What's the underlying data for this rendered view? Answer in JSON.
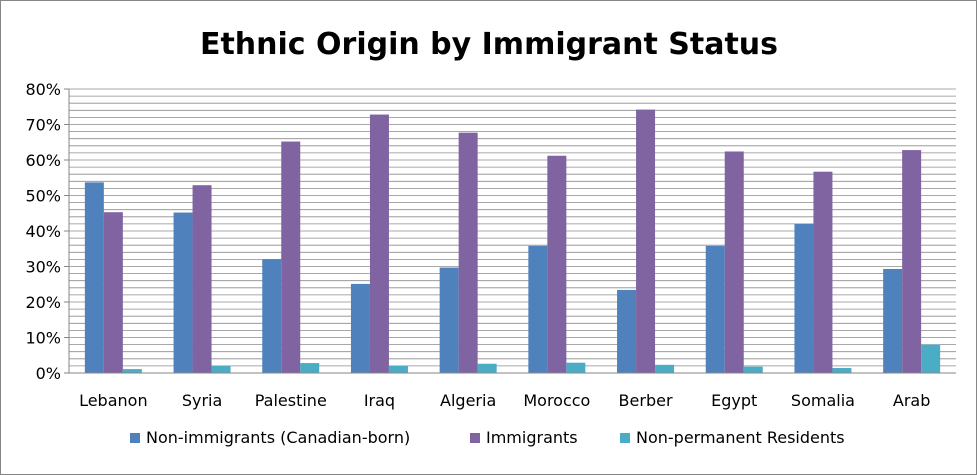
{
  "chart_data": {
    "type": "bar",
    "title": "Ethnic Origin by Immigrant Status",
    "xlabel": "",
    "ylabel": "",
    "categories": [
      "Lebanon",
      "Syria",
      "Palestine",
      "Iraq",
      "Algeria",
      "Morocco",
      "Berber",
      "Egypt",
      "Somalia",
      "Arab"
    ],
    "series": [
      {
        "name": "Non-immigrants (Canadian-born)",
        "color": "#4f81bd",
        "values": [
          53.7,
          45.2,
          32.0,
          25.1,
          29.7,
          35.8,
          23.4,
          35.8,
          42.0,
          29.3
        ]
      },
      {
        "name": "Immigrants",
        "color": "#8064a2",
        "values": [
          45.3,
          52.9,
          65.2,
          72.8,
          67.7,
          61.2,
          74.2,
          62.4,
          56.7,
          62.8
        ]
      },
      {
        "name": "Non-permanent Residents",
        "color": "#4bacc6",
        "values": [
          1.1,
          2.1,
          2.8,
          2.1,
          2.6,
          2.9,
          2.3,
          1.8,
          1.4,
          8.0
        ]
      }
    ],
    "ylim": [
      0,
      80
    ],
    "yticks": [
      "0%",
      "10%",
      "20%",
      "30%",
      "40%",
      "50%",
      "60%",
      "70%",
      "80%"
    ],
    "grid": true,
    "legend_position": "bottom"
  }
}
